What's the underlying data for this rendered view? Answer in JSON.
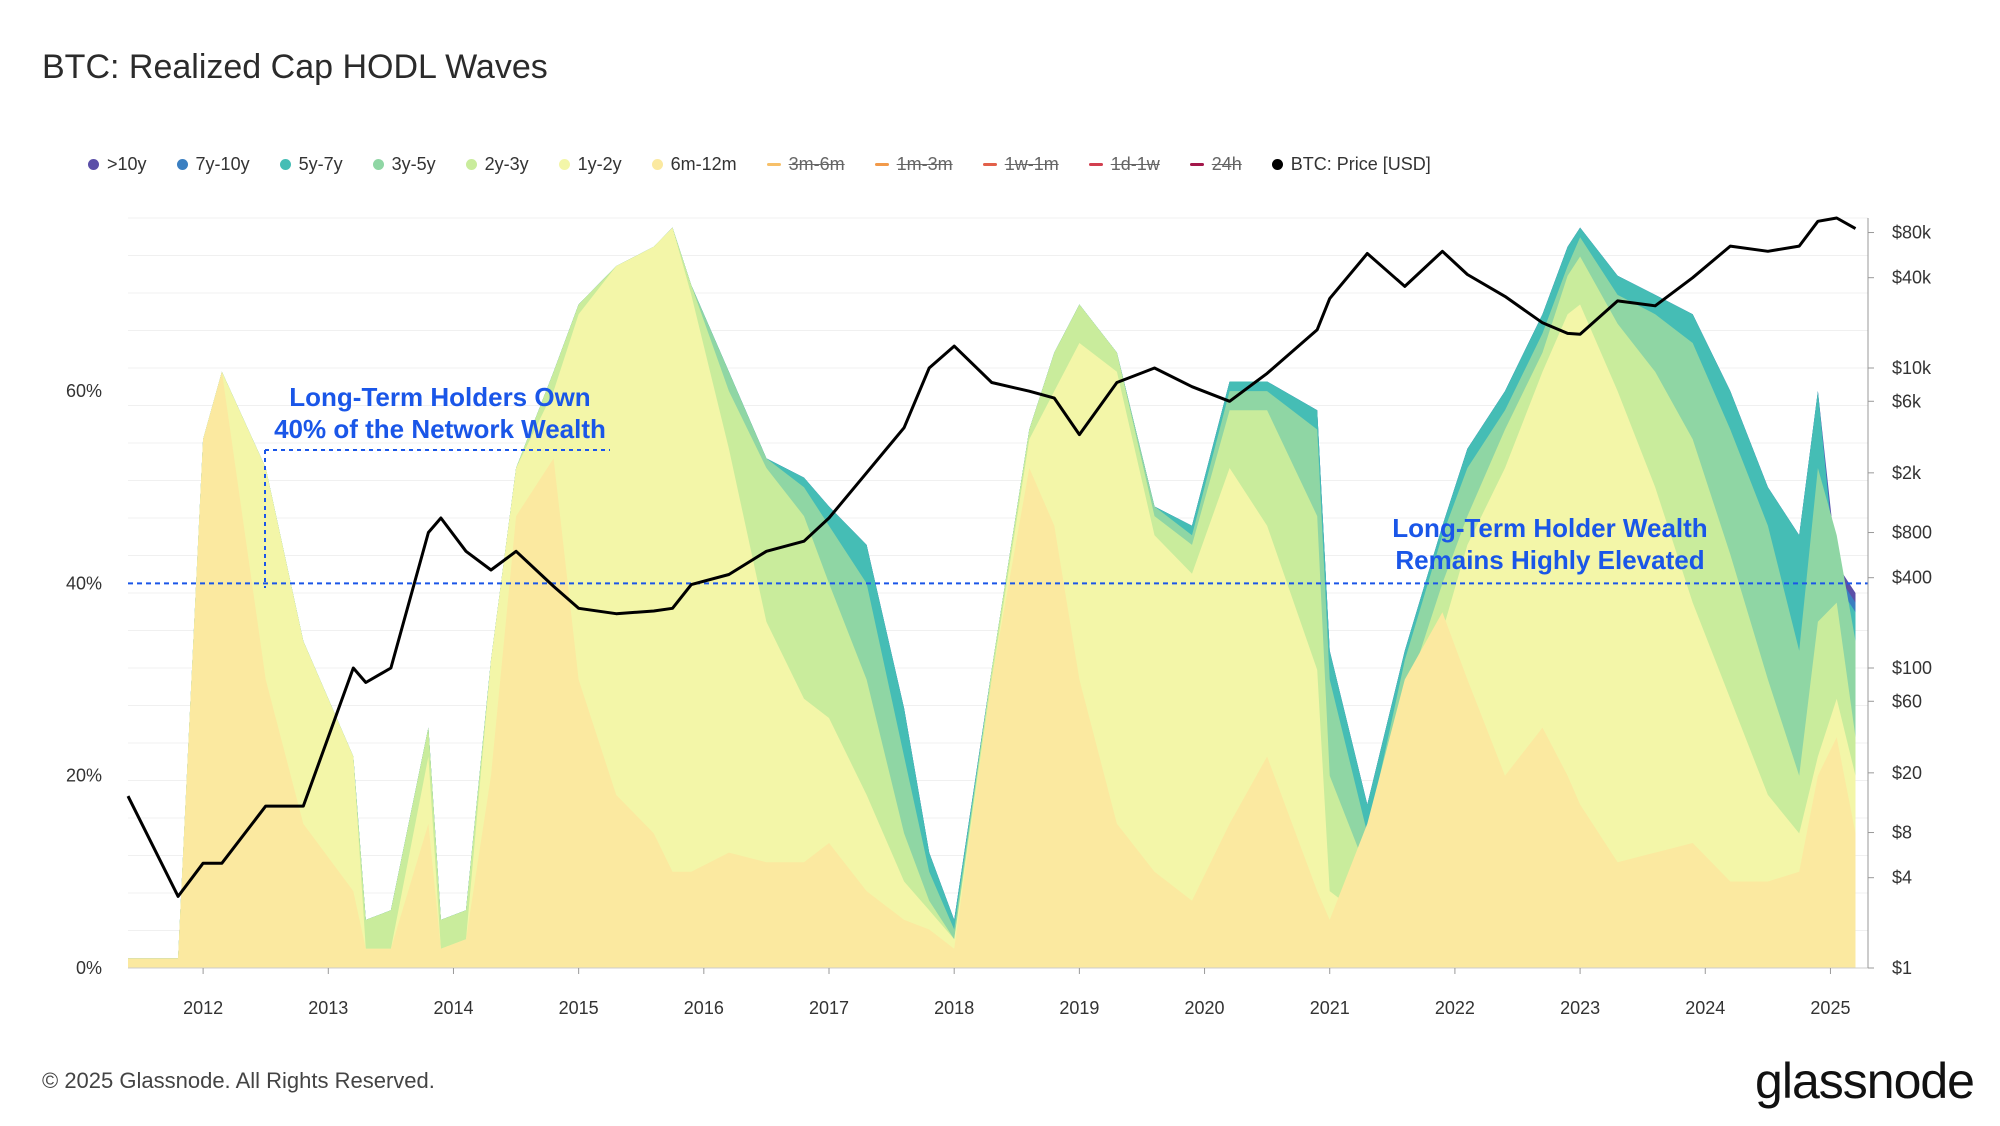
{
  "title": "BTC: Realized Cap HODL Waves",
  "legend": [
    {
      "label": ">10y",
      "color": "#5b4fa8",
      "active": true
    },
    {
      "label": "7y-10y",
      "color": "#3a7fc1",
      "active": true
    },
    {
      "label": "5y-7y",
      "color": "#45bdb5",
      "active": true
    },
    {
      "label": "3y-5y",
      "color": "#8fd6a4",
      "active": true
    },
    {
      "label": "2y-3y",
      "color": "#c9ec9c",
      "active": true
    },
    {
      "label": "1y-2y",
      "color": "#f3f6a8",
      "active": true
    },
    {
      "label": "6m-12m",
      "color": "#fbe9a0",
      "active": true
    },
    {
      "label": "3m-6m",
      "color": "#f7c069",
      "active": false
    },
    {
      "label": "1m-3m",
      "color": "#f29a4a",
      "active": false
    },
    {
      "label": "1w-1m",
      "color": "#e2604a",
      "active": false
    },
    {
      "label": "1d-1w",
      "color": "#d23f4f",
      "active": false
    },
    {
      "label": "24h",
      "color": "#a3174a",
      "active": false
    },
    {
      "label": "BTC: Price [USD]",
      "color": "#000000",
      "active": true
    }
  ],
  "annotations": {
    "left_line1": "Long-Term Holders Own",
    "left_line2": "40% of the Network Wealth",
    "right_line1": "Long-Term Holder Wealth",
    "right_line2": "Remains Highly Elevated"
  },
  "footer": "© 2025 Glassnode. All Rights Reserved.",
  "logo": "glassnode",
  "chart_data": {
    "type": "area",
    "title": "BTC: Realized Cap HODL Waves",
    "x_ticks": [
      "2012",
      "2013",
      "2014",
      "2015",
      "2016",
      "2017",
      "2018",
      "2019",
      "2020",
      "2021",
      "2022",
      "2023",
      "2024",
      "2025"
    ],
    "y_left_ticks": [
      "0%",
      "20%",
      "40%",
      "60%"
    ],
    "y_left_range": [
      0,
      0.78
    ],
    "y_right_scale": "log",
    "y_right_ticks": [
      "$1",
      "$4",
      "$8",
      "$20",
      "$60",
      "$100",
      "$400",
      "$800",
      "$2k",
      "$6k",
      "$10k",
      "$40k",
      "$80k"
    ],
    "y_right_range": [
      1,
      100000
    ],
    "reference_line": 0.4,
    "x": [
      2011.4,
      2011.8,
      2012.0,
      2012.15,
      2012.5,
      2012.8,
      2013.2,
      2013.3,
      2013.5,
      2013.8,
      2013.9,
      2014.1,
      2014.3,
      2014.5,
      2014.8,
      2015.0,
      2015.3,
      2015.6,
      2015.75,
      2015.9,
      2016.2,
      2016.5,
      2016.8,
      2017.0,
      2017.3,
      2017.6,
      2017.8,
      2018.0,
      2018.3,
      2018.6,
      2018.8,
      2019.0,
      2019.3,
      2019.6,
      2019.9,
      2020.2,
      2020.5,
      2020.9,
      2021.0,
      2021.3,
      2021.6,
      2021.9,
      2022.1,
      2022.4,
      2022.7,
      2022.9,
      2023.0,
      2023.3,
      2023.6,
      2023.9,
      2024.2,
      2024.5,
      2024.75,
      2024.9,
      2025.05,
      2025.2
    ],
    "series": [
      {
        "name": "6m-12m",
        "values": [
          0.01,
          0.01,
          0.55,
          0.62,
          0.3,
          0.15,
          0.08,
          0.02,
          0.02,
          0.15,
          0.02,
          0.03,
          0.2,
          0.47,
          0.53,
          0.3,
          0.18,
          0.14,
          0.1,
          0.1,
          0.12,
          0.11,
          0.11,
          0.13,
          0.08,
          0.05,
          0.04,
          0.02,
          0.3,
          0.52,
          0.46,
          0.3,
          0.15,
          0.1,
          0.07,
          0.15,
          0.22,
          0.08,
          0.05,
          0.15,
          0.3,
          0.37,
          0.3,
          0.2,
          0.25,
          0.2,
          0.17,
          0.11,
          0.12,
          0.13,
          0.09,
          0.09,
          0.1,
          0.2,
          0.24,
          0.14
        ]
      },
      {
        "name": "1y-2y",
        "values": [
          0.01,
          0.01,
          0.55,
          0.62,
          0.52,
          0.34,
          0.22,
          0.02,
          0.02,
          0.22,
          0.02,
          0.03,
          0.32,
          0.52,
          0.6,
          0.68,
          0.73,
          0.75,
          0.77,
          0.7,
          0.54,
          0.36,
          0.28,
          0.26,
          0.18,
          0.09,
          0.06,
          0.03,
          0.3,
          0.55,
          0.6,
          0.65,
          0.62,
          0.45,
          0.41,
          0.52,
          0.46,
          0.31,
          0.08,
          0.05,
          0.22,
          0.35,
          0.44,
          0.52,
          0.62,
          0.68,
          0.69,
          0.6,
          0.5,
          0.38,
          0.28,
          0.18,
          0.14,
          0.22,
          0.28,
          0.2
        ]
      },
      {
        "name": "2y-3y",
        "values": [
          0.01,
          0.01,
          0.55,
          0.62,
          0.52,
          0.34,
          0.22,
          0.05,
          0.06,
          0.25,
          0.05,
          0.06,
          0.32,
          0.52,
          0.62,
          0.69,
          0.73,
          0.75,
          0.77,
          0.71,
          0.6,
          0.52,
          0.47,
          0.4,
          0.3,
          0.14,
          0.07,
          0.03,
          0.31,
          0.56,
          0.64,
          0.69,
          0.64,
          0.47,
          0.44,
          0.58,
          0.58,
          0.47,
          0.2,
          0.1,
          0.28,
          0.4,
          0.47,
          0.56,
          0.64,
          0.72,
          0.74,
          0.67,
          0.62,
          0.55,
          0.43,
          0.3,
          0.2,
          0.36,
          0.38,
          0.24
        ]
      },
      {
        "name": "3y-5y",
        "values": [
          0.01,
          0.01,
          0.55,
          0.62,
          0.52,
          0.34,
          0.22,
          0.05,
          0.06,
          0.25,
          0.05,
          0.06,
          0.32,
          0.52,
          0.62,
          0.69,
          0.73,
          0.75,
          0.77,
          0.71,
          0.62,
          0.53,
          0.5,
          0.46,
          0.4,
          0.22,
          0.1,
          0.04,
          0.31,
          0.56,
          0.64,
          0.69,
          0.64,
          0.48,
          0.45,
          0.6,
          0.6,
          0.56,
          0.3,
          0.14,
          0.32,
          0.45,
          0.52,
          0.58,
          0.66,
          0.73,
          0.76,
          0.7,
          0.68,
          0.65,
          0.56,
          0.46,
          0.33,
          0.52,
          0.45,
          0.34
        ]
      },
      {
        "name": "5y-7y",
        "values": [
          0.01,
          0.01,
          0.55,
          0.62,
          0.52,
          0.34,
          0.22,
          0.05,
          0.06,
          0.25,
          0.05,
          0.06,
          0.32,
          0.52,
          0.62,
          0.69,
          0.73,
          0.75,
          0.77,
          0.71,
          0.62,
          0.53,
          0.51,
          0.48,
          0.44,
          0.27,
          0.12,
          0.05,
          0.31,
          0.56,
          0.64,
          0.69,
          0.64,
          0.48,
          0.46,
          0.61,
          0.61,
          0.58,
          0.33,
          0.17,
          0.33,
          0.46,
          0.54,
          0.6,
          0.68,
          0.75,
          0.77,
          0.72,
          0.7,
          0.68,
          0.6,
          0.5,
          0.45,
          0.6,
          0.4,
          0.37
        ]
      },
      {
        "name": "7y-10y",
        "values": [
          0.01,
          0.01,
          0.55,
          0.62,
          0.52,
          0.34,
          0.22,
          0.05,
          0.06,
          0.25,
          0.05,
          0.06,
          0.32,
          0.52,
          0.62,
          0.69,
          0.73,
          0.75,
          0.77,
          0.71,
          0.62,
          0.53,
          0.51,
          0.48,
          0.44,
          0.27,
          0.12,
          0.05,
          0.31,
          0.56,
          0.64,
          0.69,
          0.64,
          0.48,
          0.46,
          0.61,
          0.61,
          0.58,
          0.33,
          0.17,
          0.33,
          0.46,
          0.54,
          0.6,
          0.68,
          0.75,
          0.77,
          0.72,
          0.7,
          0.68,
          0.6,
          0.5,
          0.45,
          0.6,
          0.41,
          0.38
        ]
      },
      {
        "name": ">10y",
        "values": [
          0.01,
          0.01,
          0.55,
          0.62,
          0.52,
          0.34,
          0.22,
          0.05,
          0.06,
          0.25,
          0.05,
          0.06,
          0.32,
          0.52,
          0.62,
          0.69,
          0.73,
          0.75,
          0.77,
          0.71,
          0.62,
          0.53,
          0.51,
          0.48,
          0.44,
          0.27,
          0.12,
          0.05,
          0.31,
          0.56,
          0.64,
          0.69,
          0.64,
          0.48,
          0.46,
          0.61,
          0.61,
          0.58,
          0.33,
          0.17,
          0.33,
          0.46,
          0.54,
          0.6,
          0.68,
          0.75,
          0.77,
          0.72,
          0.7,
          0.68,
          0.6,
          0.5,
          0.45,
          0.6,
          0.42,
          0.39
        ]
      },
      {
        "name": "BTC: Price [USD]",
        "axis": "right",
        "values": [
          14,
          3,
          5,
          5,
          12,
          12,
          100,
          80,
          100,
          800,
          1000,
          600,
          450,
          600,
          350,
          250,
          230,
          240,
          250,
          360,
          420,
          600,
          700,
          1000,
          2000,
          4000,
          10000,
          14000,
          8000,
          7000,
          6300,
          3600,
          8000,
          10000,
          7500,
          6000,
          9200,
          18000,
          29000,
          58000,
          35000,
          60000,
          42000,
          30000,
          20000,
          17000,
          16800,
          28000,
          26000,
          40000,
          65000,
          60000,
          65000,
          95000,
          100000,
          85000
        ]
      }
    ]
  }
}
